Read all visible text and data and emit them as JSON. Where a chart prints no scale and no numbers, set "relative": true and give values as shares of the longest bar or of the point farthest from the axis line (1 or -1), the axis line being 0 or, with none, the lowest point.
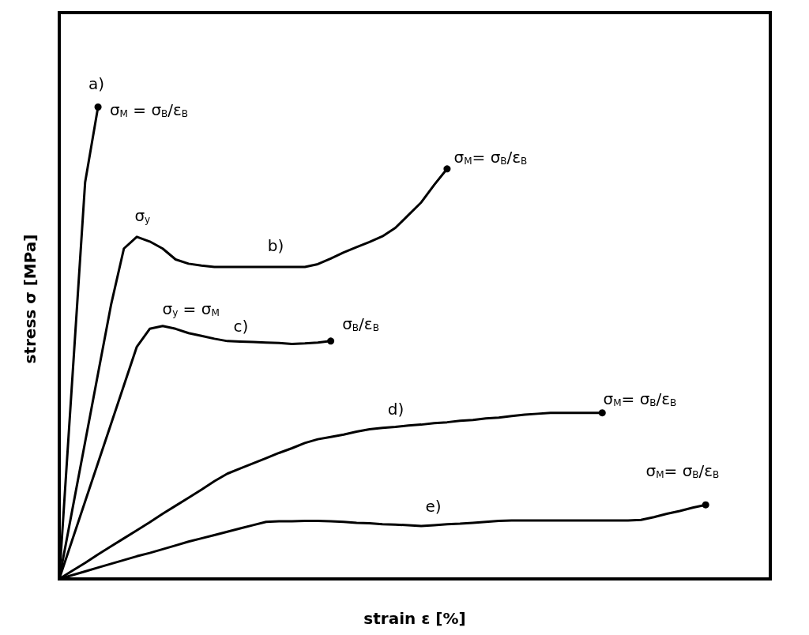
{
  "chart_data": {
    "type": "line",
    "relative": true,
    "xlabel": "strain ε [%]",
    "ylabel": "stress σ [MPa]",
    "marker": "none",
    "line_style": "solid",
    "categories": [
      null,
      null,
      null,
      null,
      null,
      null,
      null,
      null,
      null,
      null,
      null,
      null,
      null,
      null,
      null,
      null,
      null,
      null,
      null,
      null,
      null,
      null,
      null,
      null,
      null,
      null,
      null,
      null,
      null,
      null,
      null,
      null,
      null,
      null,
      null,
      null,
      null,
      null,
      null,
      null,
      null,
      null,
      null,
      null,
      null,
      null,
      null,
      null,
      null,
      null,
      null,
      null,
      null,
      null,
      null,
      null
    ],
    "series": [
      {
        "color": "#000000",
        "values": [
          0,
          0.42,
          0.84,
          1.0,
          null,
          null,
          null,
          null,
          null,
          null,
          null,
          null,
          null,
          null,
          null,
          null,
          null,
          null,
          null,
          null,
          null,
          null,
          null,
          null,
          null,
          null,
          null,
          null,
          null,
          null,
          null,
          null,
          null,
          null,
          null,
          null,
          null,
          null,
          null,
          null,
          null,
          null,
          null,
          null,
          null,
          null,
          null,
          null,
          null,
          null,
          null,
          null,
          null,
          null,
          null,
          null
        ]
      },
      {
        "color": "#000000",
        "values": [
          0,
          0.145,
          0.29,
          0.435,
          0.58,
          0.7,
          0.725,
          0.715,
          0.7,
          0.677,
          0.668,
          0.664,
          0.661,
          0.661,
          0.661,
          0.661,
          0.661,
          0.661,
          0.661,
          0.661,
          0.667,
          0.679,
          0.692,
          0.703,
          0.714,
          0.726,
          0.744,
          0.771,
          0.798,
          0.835,
          0.869,
          null,
          null,
          null,
          null,
          null,
          null,
          null,
          null,
          null,
          null,
          null,
          null,
          null,
          null,
          null,
          null,
          null,
          null,
          null,
          null,
          null,
          null,
          null,
          null,
          null
        ]
      },
      {
        "color": "#000000",
        "values": [
          0,
          0.082,
          0.164,
          0.246,
          0.328,
          0.41,
          0.492,
          0.53,
          0.536,
          0.53,
          0.521,
          0.515,
          0.509,
          0.504,
          0.503,
          0.502,
          0.501,
          0.5,
          0.498,
          0.499,
          0.501,
          0.504,
          null,
          null,
          null,
          null,
          null,
          null,
          null,
          null,
          null,
          null,
          null,
          null,
          null,
          null,
          null,
          null,
          null,
          null,
          null,
          null,
          null,
          null,
          null,
          null,
          null,
          null,
          null,
          null,
          null,
          null,
          null,
          null,
          null,
          null
        ]
      },
      {
        "color": "#000000",
        "values": [
          0,
          0.017,
          0.034,
          0.052,
          0.069,
          0.086,
          0.103,
          0.12,
          0.138,
          0.155,
          0.172,
          0.189,
          0.207,
          0.223,
          0.234,
          0.245,
          0.256,
          0.267,
          0.277,
          0.288,
          0.296,
          0.301,
          0.306,
          0.312,
          0.317,
          0.32,
          0.322,
          0.325,
          0.327,
          0.33,
          0.332,
          0.335,
          0.337,
          0.34,
          0.342,
          0.345,
          0.348,
          0.35,
          0.352,
          0.352,
          0.352,
          0.352,
          0.352,
          null,
          null,
          null,
          null,
          null,
          null,
          null,
          null,
          null,
          null,
          null,
          null,
          null
        ]
      },
      {
        "color": "#000000",
        "values": [
          0,
          0.008,
          0.016,
          0.024,
          0.032,
          0.04,
          0.048,
          0.055,
          0.063,
          0.071,
          0.079,
          0.086,
          0.093,
          0.1,
          0.107,
          0.114,
          0.121,
          0.122,
          0.122,
          0.123,
          0.123,
          0.122,
          0.121,
          0.119,
          0.118,
          0.116,
          0.115,
          0.114,
          0.112,
          0.114,
          0.116,
          0.117,
          0.119,
          0.121,
          0.123,
          0.124,
          0.124,
          0.124,
          0.124,
          0.124,
          0.124,
          0.124,
          0.124,
          0.124,
          0.124,
          0.125,
          0.131,
          0.138,
          0.144,
          0.151,
          0.157,
          null,
          null,
          null,
          null,
          null
        ]
      }
    ],
    "annotations": [
      "a)",
      "σ$_{M}$ = σ$_{B}$/ε$_{B}$",
      "σ$_{M}$= σ$_{B}$/ε$_{B}$",
      "σ$_{y}$",
      "b)",
      "σ$_{y}$ = σ$_{M}$",
      "c)",
      "σ$_{B}$/ε$_{B}$",
      "d)",
      "σ$_{M}$= σ$_{B}$/ε$_{B}$",
      "e)",
      "σ$_{M}$= σ$_{B}$/ε$_{B}$"
    ]
  }
}
